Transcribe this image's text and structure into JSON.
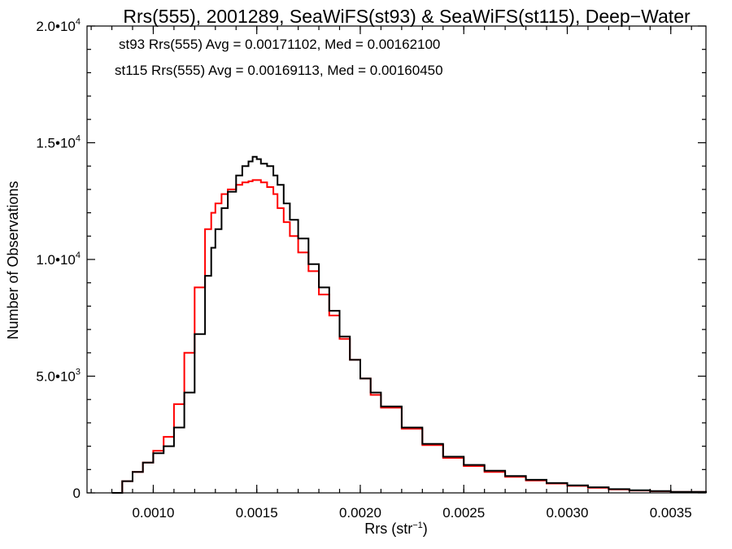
{
  "chart_data": {
    "type": "line",
    "title": "Rrs(555), 2001289, SeaWiFS(st93) & SeaWiFS(st115), Deep−Water",
    "xlabel": {
      "main": "Rrs (str",
      "sup": "−1",
      "tail": ")"
    },
    "ylabel": "Number of Observations",
    "xlim": [
      0.00068,
      0.00367
    ],
    "ylim": [
      0,
      20000
    ],
    "x_ticks": [
      {
        "value": 0.001,
        "label": "0.0010"
      },
      {
        "value": 0.0015,
        "label": "0.0015"
      },
      {
        "value": 0.002,
        "label": "0.0020"
      },
      {
        "value": 0.0025,
        "label": "0.0025"
      },
      {
        "value": 0.003,
        "label": "0.0030"
      },
      {
        "value": 0.0035,
        "label": "0.0035"
      }
    ],
    "y_ticks": [
      {
        "value": 0,
        "mant": "0",
        "exp": ""
      },
      {
        "value": 5000,
        "mant": "5.0•10",
        "exp": "3"
      },
      {
        "value": 10000,
        "mant": "1.0•10",
        "exp": "4"
      },
      {
        "value": 15000,
        "mant": "1.5•10",
        "exp": "4"
      },
      {
        "value": 20000,
        "mant": "2.0•10",
        "exp": "4"
      }
    ],
    "annotations": [
      {
        "text": "st93 Rrs(555) Avg = 0.00171102, Med = 0.00162100",
        "color": "#000000"
      },
      {
        "text": "st115 Rrs(555) Avg = 0.00169113, Med = 0.00160450",
        "color": "#ff0000"
      }
    ],
    "series": [
      {
        "color": "#000000",
        "x": [
          0.0008,
          0.00085,
          0.0009,
          0.00095,
          0.001,
          0.00105,
          0.0011,
          0.00115,
          0.0012,
          0.00125,
          0.00128,
          0.0013,
          0.00133,
          0.00136,
          0.0014,
          0.00143,
          0.00146,
          0.00148,
          0.0015,
          0.00152,
          0.00155,
          0.00158,
          0.0016,
          0.00163,
          0.00166,
          0.0017,
          0.00175,
          0.0018,
          0.00185,
          0.0019,
          0.00195,
          0.002,
          0.00205,
          0.0021,
          0.0022,
          0.0023,
          0.0024,
          0.0025,
          0.0026,
          0.0027,
          0.0028,
          0.0029,
          0.003,
          0.0031,
          0.0032,
          0.0033,
          0.0034,
          0.0035,
          0.00367
        ],
        "y": [
          0,
          500,
          900,
          1300,
          1700,
          2000,
          2800,
          4300,
          6800,
          9300,
          10500,
          11300,
          12200,
          12900,
          13600,
          14000,
          14200,
          14400,
          14300,
          14100,
          14000,
          13600,
          13200,
          12400,
          11700,
          10900,
          9800,
          8800,
          7800,
          6700,
          5700,
          4900,
          4300,
          3700,
          2800,
          2100,
          1550,
          1200,
          950,
          720,
          560,
          420,
          320,
          240,
          160,
          110,
          75,
          45,
          0
        ]
      },
      {
        "color": "#ff0000",
        "x": [
          0.0008,
          0.00085,
          0.0009,
          0.00095,
          0.001,
          0.00105,
          0.0011,
          0.00115,
          0.0012,
          0.00125,
          0.00128,
          0.0013,
          0.00133,
          0.00136,
          0.0014,
          0.00143,
          0.00146,
          0.00148,
          0.0015,
          0.00152,
          0.00155,
          0.00158,
          0.0016,
          0.00163,
          0.00166,
          0.0017,
          0.00175,
          0.0018,
          0.00185,
          0.0019,
          0.00195,
          0.002,
          0.00205,
          0.0021,
          0.0022,
          0.0023,
          0.0024,
          0.0025,
          0.0026,
          0.0027,
          0.0028,
          0.0029,
          0.003,
          0.0031,
          0.0032,
          0.0033,
          0.0034,
          0.0035,
          0.00367
        ],
        "y": [
          0,
          500,
          900,
          1300,
          1800,
          2400,
          3800,
          6000,
          8800,
          11300,
          12000,
          12400,
          12800,
          13000,
          13200,
          13300,
          13350,
          13400,
          13400,
          13300,
          13100,
          12800,
          12200,
          11600,
          11000,
          10300,
          9500,
          8500,
          7600,
          6600,
          5700,
          4900,
          4200,
          3650,
          2750,
          2050,
          1500,
          1150,
          900,
          690,
          530,
          400,
          300,
          220,
          150,
          100,
          70,
          40,
          0
        ]
      }
    ]
  }
}
